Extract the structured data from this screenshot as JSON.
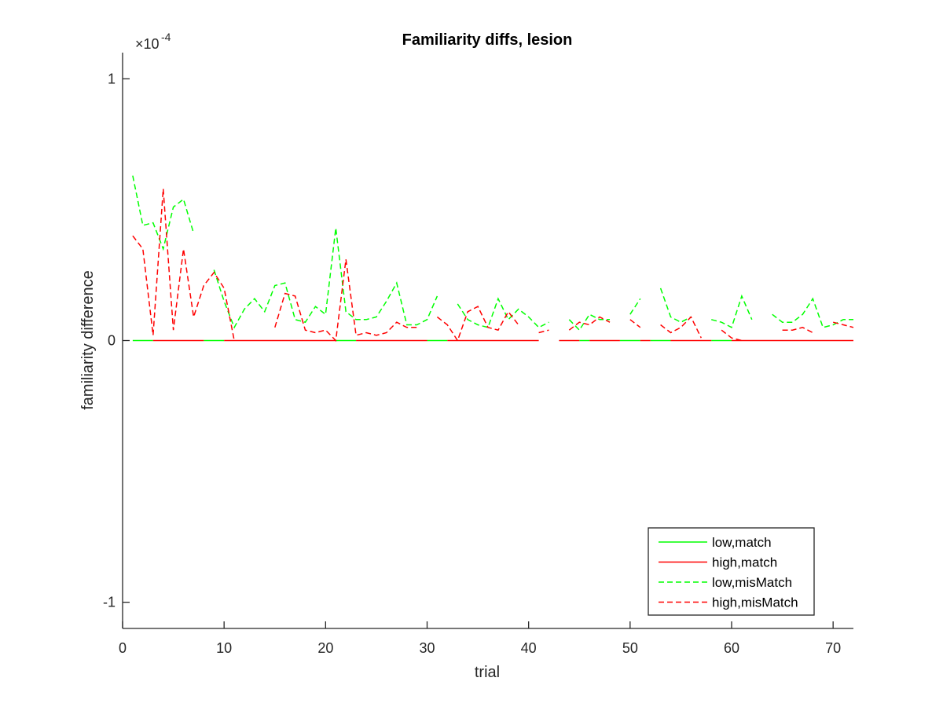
{
  "chart_data": {
    "type": "line",
    "title": "Familiarity diffs, lesion",
    "xlabel": "trial",
    "ylabel": "familiarity difference",
    "y_exponent_label": "×10",
    "y_exponent_power": "-4",
    "y_scale": 0.0001,
    "xlim": [
      0,
      72
    ],
    "ylim": [
      -1.1,
      1.1
    ],
    "xticks": [
      0,
      10,
      20,
      30,
      40,
      50,
      60,
      70
    ],
    "xtick_labels": [
      "0",
      "10",
      "20",
      "30",
      "40",
      "50",
      "60",
      "70"
    ],
    "yticks": [
      -1,
      0,
      1
    ],
    "ytick_labels": [
      "-1",
      "0",
      "1"
    ],
    "grid": false,
    "legend_position": "bottom-right",
    "series": [
      {
        "name": "low,match",
        "color": "#00ff00",
        "style": "solid",
        "segments": [
          [
            [
              1,
              0
            ],
            [
              3,
              0
            ]
          ],
          [
            [
              8,
              0
            ],
            [
              10,
              0
            ]
          ],
          [
            [
              21,
              0
            ],
            [
              23,
              0
            ]
          ],
          [
            [
              30,
              0
            ],
            [
              32,
              0
            ]
          ],
          [
            [
              45,
              0
            ],
            [
              46,
              0
            ]
          ],
          [
            [
              49,
              0
            ],
            [
              51,
              0
            ]
          ],
          [
            [
              52,
              0
            ],
            [
              54,
              0
            ]
          ],
          [
            [
              58,
              0
            ],
            [
              60,
              0
            ]
          ]
        ]
      },
      {
        "name": "high,match",
        "color": "#ff0000",
        "style": "solid",
        "segments": [
          [
            [
              3,
              0
            ],
            [
              8,
              0
            ]
          ],
          [
            [
              10,
              0
            ],
            [
              21,
              0
            ]
          ],
          [
            [
              23,
              0
            ],
            [
              30,
              0
            ]
          ],
          [
            [
              32,
              0
            ],
            [
              41,
              0
            ]
          ],
          [
            [
              43,
              0
            ],
            [
              45,
              0
            ]
          ],
          [
            [
              46,
              0
            ],
            [
              49,
              0
            ]
          ],
          [
            [
              51,
              0
            ],
            [
              52,
              0
            ]
          ],
          [
            [
              54,
              0
            ],
            [
              58,
              0
            ]
          ],
          [
            [
              60,
              0
            ],
            [
              72,
              0
            ]
          ]
        ]
      },
      {
        "name": "low,misMatch",
        "color": "#00ff00",
        "style": "dashed",
        "segments": [
          [
            [
              1,
              0.63
            ],
            [
              2,
              0.44
            ],
            [
              3,
              0.45
            ],
            [
              4,
              0.35
            ],
            [
              5,
              0.51
            ],
            [
              6,
              0.54
            ],
            [
              7,
              0.41
            ]
          ],
          [
            [
              9,
              0.27
            ],
            [
              10,
              0.15
            ],
            [
              11,
              0.05
            ],
            [
              12,
              0.12
            ],
            [
              13,
              0.16
            ],
            [
              14,
              0.11
            ],
            [
              15,
              0.21
            ],
            [
              16,
              0.22
            ],
            [
              17,
              0.08
            ],
            [
              18,
              0.07
            ],
            [
              19,
              0.13
            ],
            [
              20,
              0.1
            ],
            [
              21,
              0.43
            ],
            [
              22,
              0.11
            ],
            [
              23,
              0.08
            ],
            [
              24,
              0.08
            ],
            [
              25,
              0.09
            ],
            [
              26,
              0.15
            ],
            [
              27,
              0.22
            ],
            [
              28,
              0.06
            ],
            [
              29,
              0.06
            ],
            [
              30,
              0.08
            ],
            [
              31,
              0.17
            ]
          ],
          [
            [
              33,
              0.14
            ],
            [
              34,
              0.08
            ],
            [
              35,
              0.06
            ],
            [
              36,
              0.05
            ],
            [
              37,
              0.16
            ],
            [
              38,
              0.08
            ],
            [
              39,
              0.12
            ],
            [
              40,
              0.09
            ],
            [
              41,
              0.05
            ],
            [
              42,
              0.07
            ]
          ],
          [
            [
              44,
              0.08
            ],
            [
              45,
              0.04
            ],
            [
              46,
              0.1
            ],
            [
              47,
              0.08
            ],
            [
              48,
              0.08
            ]
          ],
          [
            [
              50,
              0.1
            ],
            [
              51,
              0.16
            ]
          ],
          [
            [
              53,
              0.2
            ],
            [
              54,
              0.09
            ],
            [
              55,
              0.07
            ],
            [
              56,
              0.09
            ]
          ],
          [
            [
              58,
              0.08
            ],
            [
              59,
              0.07
            ],
            [
              60,
              0.05
            ],
            [
              61,
              0.17
            ],
            [
              62,
              0.08
            ]
          ],
          [
            [
              64,
              0.1
            ],
            [
              65,
              0.07
            ],
            [
              66,
              0.07
            ],
            [
              67,
              0.1
            ],
            [
              68,
              0.16
            ],
            [
              69,
              0.05
            ],
            [
              70,
              0.06
            ],
            [
              71,
              0.08
            ],
            [
              72,
              0.08
            ]
          ]
        ]
      },
      {
        "name": "high,misMatch",
        "color": "#ff0000",
        "style": "dashed",
        "segments": [
          [
            [
              1,
              0.4
            ],
            [
              2,
              0.35
            ],
            [
              3,
              0.02
            ],
            [
              4,
              0.58
            ],
            [
              5,
              0.04
            ],
            [
              6,
              0.35
            ],
            [
              7,
              0.09
            ],
            [
              8,
              0.21
            ],
            [
              9,
              0.26
            ],
            [
              10,
              0.2
            ],
            [
              11,
              0.0
            ]
          ],
          [
            [
              15,
              0.05
            ],
            [
              16,
              0.18
            ],
            [
              17,
              0.17
            ],
            [
              18,
              0.04
            ],
            [
              19,
              0.03
            ],
            [
              20,
              0.04
            ],
            [
              21,
              0.0
            ],
            [
              22,
              0.31
            ],
            [
              23,
              0.02
            ],
            [
              24,
              0.03
            ],
            [
              25,
              0.02
            ],
            [
              26,
              0.03
            ],
            [
              27,
              0.07
            ],
            [
              28,
              0.05
            ],
            [
              29,
              0.05
            ]
          ],
          [
            [
              31,
              0.09
            ],
            [
              32,
              0.06
            ],
            [
              33,
              0.0
            ],
            [
              34,
              0.11
            ],
            [
              35,
              0.13
            ],
            [
              36,
              0.05
            ],
            [
              37,
              0.04
            ],
            [
              38,
              0.11
            ],
            [
              39,
              0.06
            ]
          ],
          [
            [
              41,
              0.03
            ],
            [
              42,
              0.04
            ]
          ],
          [
            [
              44,
              0.04
            ],
            [
              45,
              0.07
            ],
            [
              46,
              0.06
            ],
            [
              47,
              0.09
            ],
            [
              48,
              0.07
            ]
          ],
          [
            [
              50,
              0.08
            ],
            [
              51,
              0.05
            ]
          ],
          [
            [
              53,
              0.06
            ],
            [
              54,
              0.03
            ],
            [
              55,
              0.05
            ],
            [
              56,
              0.09
            ],
            [
              57,
              0.01
            ]
          ],
          [
            [
              59,
              0.04
            ],
            [
              60,
              0.01
            ],
            [
              61,
              0.0
            ]
          ],
          [
            [
              65,
              0.04
            ],
            [
              66,
              0.04
            ],
            [
              67,
              0.05
            ],
            [
              68,
              0.03
            ]
          ],
          [
            [
              70,
              0.07
            ],
            [
              71,
              0.06
            ],
            [
              72,
              0.05
            ]
          ]
        ]
      }
    ]
  }
}
